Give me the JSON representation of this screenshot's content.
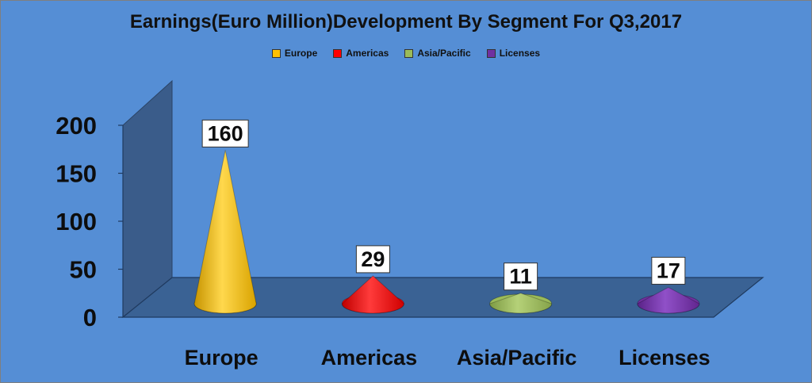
{
  "chart_data": {
    "type": "bar",
    "style": "3d-cone",
    "title": "Earnings(Euro Million)Development By Segment For Q3,2017",
    "categories": [
      "Europe",
      "Americas",
      "Asia/Pacific",
      "Licenses"
    ],
    "values": [
      160,
      29,
      11,
      17
    ],
    "series": [
      {
        "name": "Europe",
        "color": "#FFC000"
      },
      {
        "name": "Americas",
        "color": "#FF0000"
      },
      {
        "name": "Asia/Pacific",
        "color": "#9BBB59"
      },
      {
        "name": "Licenses",
        "color": "#7030A0"
      }
    ],
    "ylim": [
      0,
      200
    ],
    "yticks": [
      0,
      50,
      100,
      150,
      200
    ],
    "legend_position": "top",
    "data_labels": [
      "160",
      "29",
      "11",
      "17"
    ],
    "grid": false
  },
  "colors": {
    "background": "#558ED5",
    "wall": "#3A5C8A",
    "floor": "#3A6294"
  }
}
